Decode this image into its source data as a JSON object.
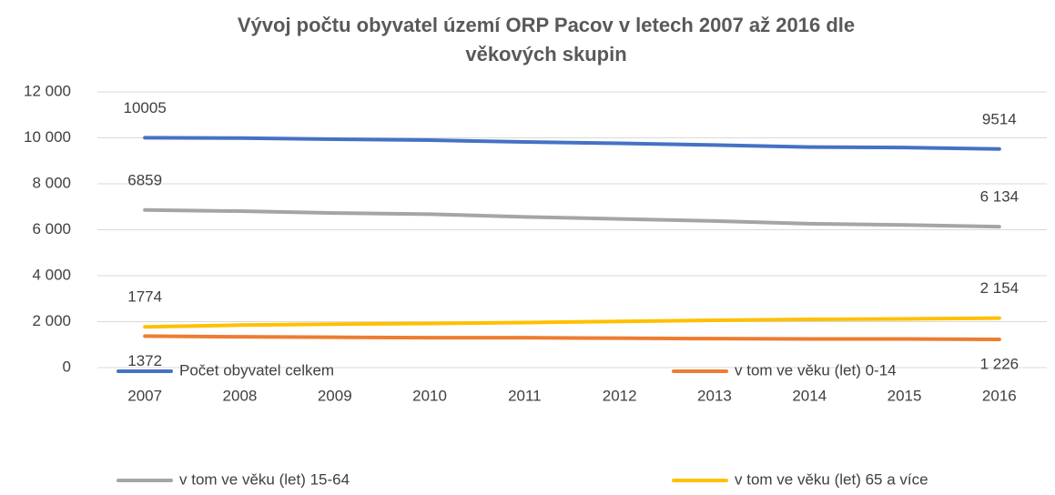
{
  "chart_data": {
    "type": "line",
    "title": "Vývoj počtu obyvatel území ORP Pacov v letech 2007 až 2016 dle věkových skupin",
    "categories": [
      "2007",
      "2008",
      "2009",
      "2010",
      "2011",
      "2012",
      "2013",
      "2014",
      "2015",
      "2016"
    ],
    "series": [
      {
        "name": "Počet obyvatel celkem",
        "color": "#4472c4",
        "values": [
          10005,
          9990,
          9940,
          9900,
          9820,
          9760,
          9690,
          9600,
          9580,
          9514
        ],
        "value_labels": [
          "10005",
          null,
          null,
          null,
          null,
          null,
          null,
          null,
          null,
          "9514"
        ]
      },
      {
        "name": "v tom ve věku (let) 0-14",
        "color": "#ed7d31",
        "values": [
          1372,
          1340,
          1320,
          1300,
          1300,
          1280,
          1260,
          1250,
          1250,
          1226
        ],
        "value_labels": [
          "1372",
          null,
          null,
          null,
          null,
          null,
          null,
          null,
          null,
          "1 226"
        ]
      },
      {
        "name": "v tom ve věku (let) 15-64",
        "color": "#a5a5a5",
        "values": [
          6859,
          6810,
          6730,
          6680,
          6560,
          6470,
          6380,
          6260,
          6210,
          6134
        ],
        "value_labels": [
          "6859",
          null,
          null,
          null,
          null,
          null,
          null,
          null,
          null,
          "6 134"
        ]
      },
      {
        "name": "v tom ve věku (let) 65 a více",
        "color": "#ffc000",
        "values": [
          1774,
          1850,
          1890,
          1920,
          1960,
          2010,
          2060,
          2100,
          2120,
          2154
        ],
        "value_labels": [
          "1774",
          null,
          null,
          null,
          null,
          null,
          null,
          null,
          null,
          "2 154"
        ]
      }
    ],
    "ylim": [
      0,
      12000
    ],
    "yticks": [
      0,
      {
        "value": 2000,
        "label": "2 000"
      },
      {
        "value": 4000,
        "label": "4 000"
      },
      {
        "value": 6000,
        "label": "6 000"
      },
      {
        "value": 8000,
        "label": "8 000"
      },
      {
        "value": 10000,
        "label": "10 000"
      },
      {
        "value": 12000,
        "label": "12 000"
      }
    ],
    "grid": true
  }
}
